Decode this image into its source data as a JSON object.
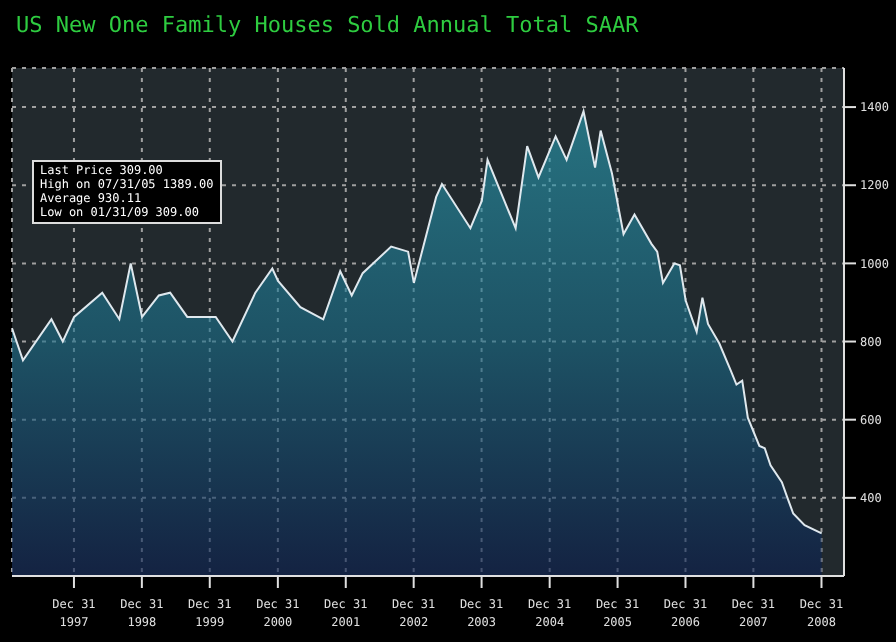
{
  "chart_data": {
    "type": "area",
    "title": "US New One Family Houses Sold Annual Total SAAR",
    "x": [
      "1997-02",
      "1997-04",
      "1997-09",
      "1997-11",
      "1998-01",
      "1998-06",
      "1998-09",
      "1998-11",
      "1999-01",
      "1999-04",
      "1999-06",
      "1999-09",
      "2000-02",
      "2000-05",
      "2000-09",
      "2000-12",
      "2001-01",
      "2001-05",
      "2001-09",
      "2001-12",
      "2002-02",
      "2002-04",
      "2002-09",
      "2002-12",
      "2003-01",
      "2003-05",
      "2003-06",
      "2003-11",
      "2004-01",
      "2004-02",
      "2004-04",
      "2004-07",
      "2004-09",
      "2004-11",
      "2005-02",
      "2005-04",
      "2005-07",
      "2005-09",
      "2005-10",
      "2005-12",
      "2006-02",
      "2006-04",
      "2006-07",
      "2006-08",
      "2006-09",
      "2006-11",
      "2006-12",
      "2007-01",
      "2007-03",
      "2007-04",
      "2007-05",
      "2007-07",
      "2007-09",
      "2007-10",
      "2007-11",
      "2007-12",
      "2008-02",
      "2008-03",
      "2008-04",
      "2008-06",
      "2008-07",
      "2008-08",
      "2008-10",
      "2009-01"
    ],
    "series": [
      {
        "color": "#1a6e8a",
        "values": [
          834,
          752,
          857,
          800,
          863,
          925,
          857,
          1000,
          863,
          918,
          925,
          863,
          863,
          800,
          925,
          987,
          955,
          888,
          857,
          980,
          918,
          975,
          1043,
          1030,
          950,
          1170,
          1203,
          1090,
          1160,
          1265,
          1195,
          1090,
          1300,
          1220,
          1325,
          1265,
          1389,
          1245,
          1340,
          1230,
          1075,
          1125,
          1050,
          1030,
          950,
          1000,
          995,
          905,
          825,
          912,
          845,
          795,
          725,
          690,
          700,
          605,
          533,
          527,
          483,
          440,
          400,
          360,
          330,
          309
        ]
      }
    ],
    "xlim": [
      "1997-02",
      "2009-05"
    ],
    "xticks": [
      {
        "value": "1997-12-31",
        "label": "Dec 31 1997"
      },
      {
        "value": "1998-12-31",
        "label": "Dec 31 1998"
      },
      {
        "value": "1999-12-31",
        "label": "Dec 31 1999"
      },
      {
        "value": "2000-12-31",
        "label": "Dec 31 2000"
      },
      {
        "value": "2001-12-31",
        "label": "Dec 31 2001"
      },
      {
        "value": "2002-12-31",
        "label": "Dec 31 2002"
      },
      {
        "value": "2003-12-31",
        "label": "Dec 31 2003"
      },
      {
        "value": "2004-12-31",
        "label": "Dec 31 2004"
      },
      {
        "value": "2005-12-31",
        "label": "Dec 31 2005"
      },
      {
        "value": "2006-12-31",
        "label": "Dec 31 2006"
      },
      {
        "value": "2007-12-31",
        "label": "Dec 31 2007"
      },
      {
        "value": "2008-12-31",
        "label": "Dec 31 2008"
      }
    ],
    "ylim": [
      200,
      1500
    ],
    "yticks": [
      400,
      600,
      800,
      1000,
      1200,
      1400
    ],
    "grid": true,
    "annotations": [
      "Last Price 309.00",
      "High on 07/31/05 1389.00",
      "Average 930.11",
      "Low on 01/31/09 309.00"
    ]
  }
}
